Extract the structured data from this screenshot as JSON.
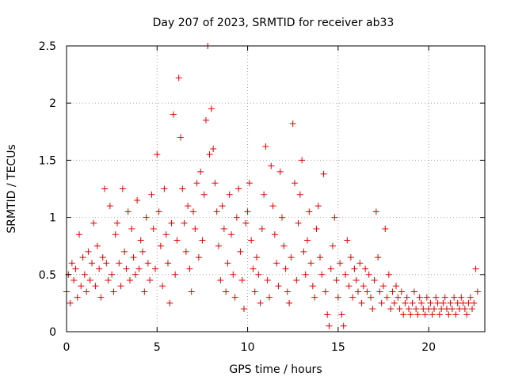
{
  "chart_data": {
    "type": "scatter",
    "title": "Day 207 of 2023, SRMTID for receiver ab33",
    "xlabel": "GPS time / hours",
    "ylabel": "SRMTID / TECUs",
    "xlim": [
      0,
      23.1
    ],
    "ylim": [
      0,
      2.5
    ],
    "xticks": [
      0,
      5,
      10,
      15,
      20
    ],
    "xtick_labels": [
      "0",
      "5",
      "10",
      "15",
      "20"
    ],
    "yticks": [
      0,
      0.5,
      1,
      1.5,
      2,
      2.5
    ],
    "ytick_labels": [
      "0",
      "0.5",
      "1",
      "1.5",
      "2",
      "2.5"
    ],
    "grid": true,
    "legend": "none",
    "marker": "plus",
    "series": [
      {
        "name": "SRMTID",
        "color": "#e00000",
        "x": [
          0.0,
          0.1,
          0.2,
          0.3,
          0.4,
          0.5,
          0.6,
          0.7,
          0.8,
          0.9,
          1.0,
          1.1,
          1.2,
          1.3,
          1.4,
          1.5,
          1.6,
          1.7,
          1.8,
          1.9,
          2.0,
          2.1,
          2.2,
          2.3,
          2.4,
          2.5,
          2.6,
          2.7,
          2.8,
          2.9,
          3.0,
          3.1,
          3.2,
          3.3,
          3.4,
          3.5,
          3.6,
          3.7,
          3.8,
          3.9,
          4.0,
          4.1,
          4.2,
          4.3,
          4.4,
          4.5,
          4.6,
          4.7,
          4.8,
          4.9,
          5.0,
          5.1,
          5.2,
          5.3,
          5.4,
          5.5,
          5.6,
          5.7,
          5.8,
          5.9,
          6.0,
          6.1,
          6.2,
          6.3,
          6.4,
          6.5,
          6.6,
          6.7,
          6.8,
          6.9,
          7.0,
          7.1,
          7.2,
          7.3,
          7.4,
          7.5,
          7.6,
          7.7,
          7.8,
          7.9,
          8.0,
          8.1,
          8.2,
          8.3,
          8.4,
          8.5,
          8.6,
          8.7,
          8.8,
          8.9,
          9.0,
          9.1,
          9.2,
          9.3,
          9.4,
          9.5,
          9.6,
          9.7,
          9.8,
          9.9,
          10.0,
          10.1,
          10.2,
          10.3,
          10.4,
          10.5,
          10.6,
          10.7,
          10.8,
          10.9,
          11.0,
          11.1,
          11.2,
          11.3,
          11.4,
          11.5,
          11.6,
          11.7,
          11.8,
          11.9,
          12.0,
          12.1,
          12.2,
          12.3,
          12.4,
          12.5,
          12.6,
          12.7,
          12.8,
          12.9,
          13.0,
          13.1,
          13.2,
          13.3,
          13.4,
          13.5,
          13.6,
          13.7,
          13.8,
          13.9,
          14.0,
          14.1,
          14.2,
          14.3,
          14.4,
          14.5,
          14.6,
          14.7,
          14.8,
          14.9,
          15.0,
          15.1,
          15.2,
          15.3,
          15.4,
          15.5,
          15.6,
          15.7,
          15.8,
          15.9,
          16.0,
          16.1,
          16.2,
          16.3,
          16.4,
          16.5,
          16.6,
          16.7,
          16.8,
          16.9,
          17.0,
          17.1,
          17.2,
          17.3,
          17.4,
          17.5,
          17.6,
          17.7,
          17.8,
          17.9,
          18.0,
          18.1,
          18.2,
          18.3,
          18.4,
          18.5,
          18.6,
          18.7,
          18.8,
          18.9,
          19.0,
          19.1,
          19.2,
          19.3,
          19.4,
          19.5,
          19.6,
          19.7,
          19.8,
          19.9,
          20.0,
          20.1,
          20.2,
          20.3,
          20.4,
          20.5,
          20.6,
          20.7,
          20.8,
          20.9,
          21.0,
          21.1,
          21.2,
          21.3,
          21.4,
          21.5,
          21.6,
          21.7,
          21.8,
          21.9,
          22.0,
          22.1,
          22.2,
          22.3,
          22.4,
          22.5,
          22.6,
          22.7
        ],
        "y": [
          0.35,
          0.5,
          0.25,
          0.6,
          0.45,
          0.55,
          0.3,
          0.85,
          0.4,
          0.65,
          0.5,
          0.35,
          0.7,
          0.45,
          0.6,
          0.95,
          0.4,
          0.75,
          0.55,
          0.3,
          0.65,
          1.25,
          0.6,
          0.45,
          1.1,
          0.5,
          0.35,
          0.85,
          0.95,
          0.6,
          0.4,
          1.25,
          0.7,
          0.55,
          1.05,
          0.45,
          0.9,
          0.65,
          0.5,
          1.15,
          0.55,
          0.8,
          0.7,
          0.35,
          1.0,
          0.6,
          0.45,
          1.2,
          0.9,
          0.55,
          1.55,
          1.05,
          0.75,
          0.4,
          1.25,
          0.85,
          0.6,
          0.25,
          0.95,
          1.9,
          0.5,
          0.8,
          2.22,
          1.7,
          1.25,
          0.95,
          0.7,
          1.1,
          0.55,
          0.35,
          1.05,
          0.9,
          1.3,
          0.65,
          1.4,
          0.8,
          1.2,
          1.85,
          2.5,
          1.55,
          1.95,
          1.6,
          1.3,
          1.05,
          0.75,
          0.45,
          1.1,
          0.9,
          0.35,
          0.6,
          1.2,
          0.85,
          0.5,
          0.3,
          1.0,
          1.25,
          0.7,
          0.45,
          0.2,
          0.95,
          1.05,
          1.3,
          0.8,
          0.55,
          0.35,
          0.65,
          0.5,
          0.25,
          0.9,
          1.2,
          1.62,
          0.45,
          0.3,
          1.45,
          1.1,
          0.85,
          0.6,
          0.4,
          1.4,
          1.0,
          0.75,
          0.55,
          0.35,
          0.25,
          0.65,
          1.82,
          1.3,
          0.45,
          0.95,
          1.2,
          1.5,
          0.7,
          0.5,
          0.8,
          1.05,
          0.6,
          0.4,
          0.3,
          0.9,
          1.1,
          0.65,
          0.5,
          1.38,
          0.35,
          0.15,
          0.05,
          0.55,
          0.75,
          1.0,
          0.45,
          0.3,
          0.6,
          0.15,
          0.05,
          0.5,
          0.8,
          0.4,
          0.65,
          0.3,
          0.55,
          0.45,
          0.35,
          0.6,
          0.25,
          0.4,
          0.55,
          0.35,
          0.5,
          0.3,
          0.2,
          0.45,
          1.05,
          0.65,
          0.35,
          0.25,
          0.4,
          0.9,
          0.3,
          0.5,
          0.2,
          0.35,
          0.25,
          0.4,
          0.3,
          0.2,
          0.35,
          0.15,
          0.25,
          0.3,
          0.2,
          0.15,
          0.25,
          0.35,
          0.2,
          0.15,
          0.3,
          0.25,
          0.2,
          0.15,
          0.3,
          0.2,
          0.25,
          0.15,
          0.2,
          0.3,
          0.25,
          0.15,
          0.2,
          0.25,
          0.3,
          0.2,
          0.15,
          0.25,
          0.2,
          0.3,
          0.15,
          0.25,
          0.2,
          0.3,
          0.25,
          0.2,
          0.15,
          0.25,
          0.3,
          0.2,
          0.25,
          0.55,
          0.35
        ]
      }
    ]
  }
}
